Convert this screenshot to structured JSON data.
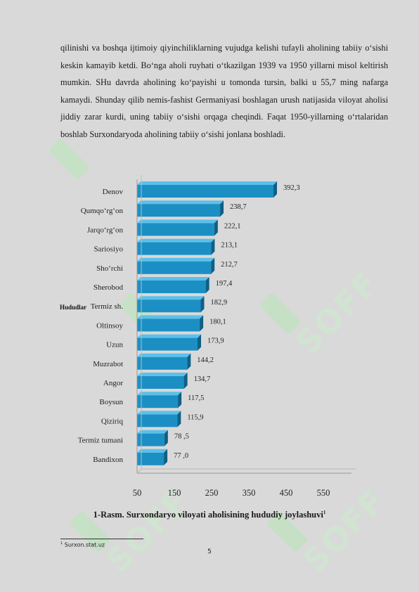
{
  "paragraph": "qilinishi va boshqa ijtimoiy qiyinchiliklarning vujudga kelishi tufayli aholining tabiiy o‘sishi keskin kamayib ketdi. Bo‘nga aholi ruyhati o‘tkazilgan 1939 va 1950 yillarni misol keltirish mumkin. SHu davrda aholining ko‘payishi u tomonda tursin, balki u 55,7 ming nafarga kamaydi. Shunday qilib nemis-fashist Germaniyasi boshlagan urush natijasida viloyat aholisi jiddiy zarar kurdi, uning tabiiy o‘sishi orqaga cheqindi. Faqat 1950-yillarning o‘rtalaridan boshlab Surxondaryoda aholining tabiiy o‘sishi jonlana boshladi.",
  "chart_data": {
    "type": "bar",
    "orientation": "horizontal",
    "ylabel": "Hududlar",
    "categories": [
      "Denov",
      "Qumqo‘rg‘on",
      "Jarqo‘rg‘on",
      "Sariosiyo",
      "Sho‘rchi",
      "Sherobod",
      "Termiz sh.",
      "Oltinsoy",
      "Uzun",
      "Muzrabot",
      "Angor",
      "Boysun",
      "Qiziriq",
      "Termiz tumani",
      "Bandixon"
    ],
    "values": [
      392.3,
      238.7,
      222.1,
      213.1,
      212.7,
      197.4,
      182.9,
      180.1,
      173.9,
      144.2,
      134.7,
      117.5,
      115.9,
      78.5,
      77.0
    ],
    "value_labels": [
      "392,3",
      "238,7",
      "222,1",
      "213,1",
      "212,7",
      "197,4",
      "182,9",
      "180,1",
      "173,9",
      "144,2",
      "134,7",
      "117,5",
      "115,9",
      "78 ,5",
      "77 ,0"
    ],
    "xticks": [
      "50",
      "150",
      "250",
      "350",
      "450",
      "550"
    ],
    "xlim": [
      50,
      550
    ],
    "bar_color": "#1b8fc4",
    "grid": false
  },
  "caption": "1-Rasm. Surxondaryo viloyati aholisining hududiy joylashuvi",
  "caption_ref": "1",
  "footnote": {
    "ref": "1",
    "text": "Surxon.stat.uz"
  },
  "page_number": "5",
  "watermark": "SOFF"
}
